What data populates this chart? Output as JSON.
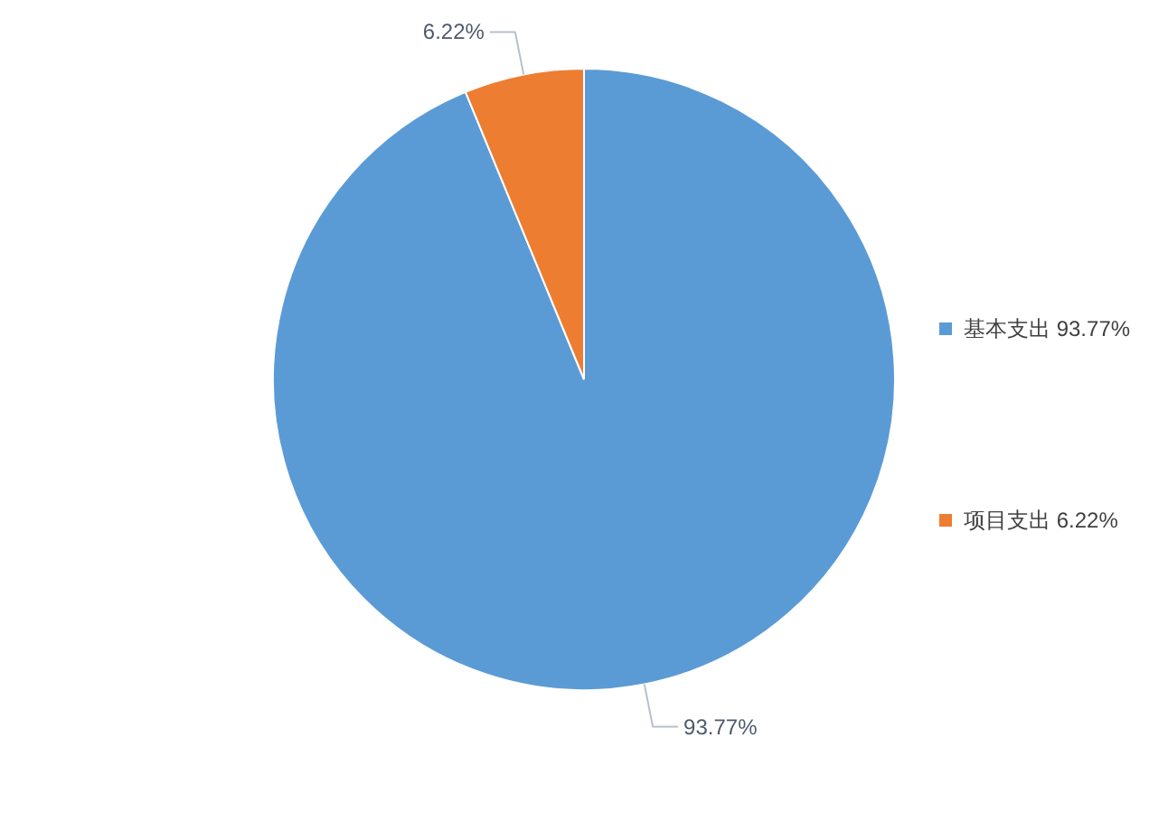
{
  "chart_data": {
    "type": "pie",
    "categories": [
      "基本支出",
      "项目支出"
    ],
    "values": [
      93.77,
      6.22
    ],
    "colors": [
      "#5b9bd5",
      "#ed7d31"
    ],
    "value_labels": [
      "93.77%",
      "6.22%"
    ],
    "legend": "right"
  }
}
